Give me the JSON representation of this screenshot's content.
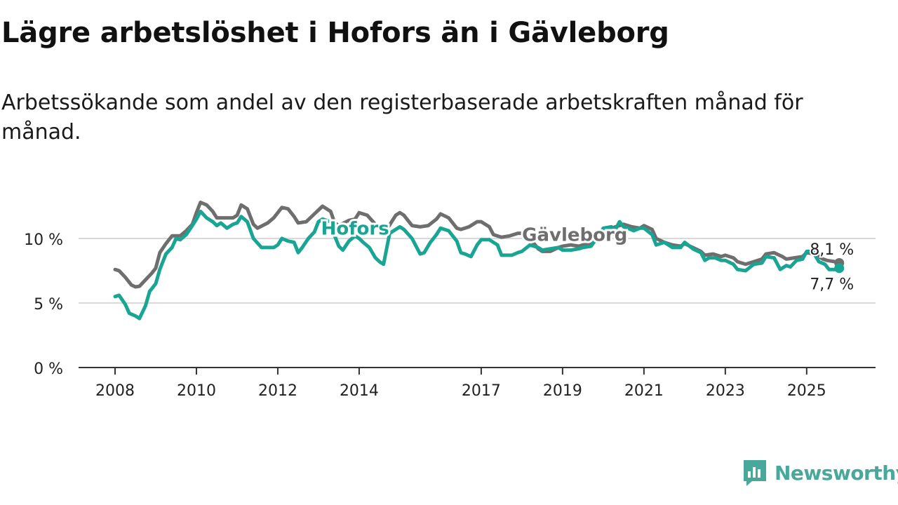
{
  "title": "Lägre arbetslöshet i Hofors än i Gävleborg",
  "subtitle": "Arbetssökande som andel av den registerbaserade arbetskraften månad för månad.",
  "brand": {
    "name": "Newsworthy",
    "icon": "newsworthy-logo-icon",
    "color": "#48a89c"
  },
  "chart_data": {
    "type": "line",
    "title": "Lägre arbetslöshet i Hofors än i Gävleborg",
    "ylabel": "",
    "xlabel": "",
    "ylim": [
      0,
      13
    ],
    "yticks": [
      0,
      5,
      10
    ],
    "ytick_labels": [
      "0 %",
      "5 %",
      "10 %"
    ],
    "xlim": [
      2008.0,
      2025.917
    ],
    "xticks": [
      2008,
      2010,
      2012,
      2014,
      2017,
      2019,
      2021,
      2023,
      2025
    ],
    "xtick_labels": [
      "2008",
      "2010",
      "2012",
      "2014",
      "2017",
      "2019",
      "2021",
      "2023",
      "2025"
    ],
    "series": [
      {
        "name": "Gävleborg",
        "color": "#6e6e6e",
        "end_label": "8,1 %",
        "points": [
          [
            2008.0,
            7.6
          ],
          [
            2008.1,
            7.5
          ],
          [
            2008.25,
            7.0
          ],
          [
            2008.4,
            6.4
          ],
          [
            2008.5,
            6.25
          ],
          [
            2008.6,
            6.3
          ],
          [
            2008.75,
            6.8
          ],
          [
            2008.9,
            7.3
          ],
          [
            2009.0,
            7.7
          ],
          [
            2009.1,
            8.9
          ],
          [
            2009.25,
            9.6
          ],
          [
            2009.4,
            10.2
          ],
          [
            2009.6,
            10.2
          ],
          [
            2009.75,
            10.6
          ],
          [
            2009.9,
            11.1
          ],
          [
            2010.0,
            12.0
          ],
          [
            2010.1,
            12.8
          ],
          [
            2010.25,
            12.6
          ],
          [
            2010.4,
            12.1
          ],
          [
            2010.5,
            11.6
          ],
          [
            2010.75,
            11.6
          ],
          [
            2010.9,
            11.6
          ],
          [
            2011.0,
            11.8
          ],
          [
            2011.1,
            12.6
          ],
          [
            2011.25,
            12.3
          ],
          [
            2011.4,
            11.1
          ],
          [
            2011.5,
            10.8
          ],
          [
            2011.75,
            11.2
          ],
          [
            2011.9,
            11.6
          ],
          [
            2012.0,
            12.0
          ],
          [
            2012.1,
            12.4
          ],
          [
            2012.25,
            12.3
          ],
          [
            2012.4,
            11.7
          ],
          [
            2012.5,
            11.2
          ],
          [
            2012.7,
            11.3
          ],
          [
            2012.9,
            11.9
          ],
          [
            2013.0,
            12.2
          ],
          [
            2013.1,
            12.5
          ],
          [
            2013.3,
            12.1
          ],
          [
            2013.4,
            11.2
          ],
          [
            2013.5,
            11.0
          ],
          [
            2013.75,
            11.4
          ],
          [
            2013.9,
            11.5
          ],
          [
            2014.0,
            12.0
          ],
          [
            2014.2,
            11.8
          ],
          [
            2014.4,
            11.1
          ],
          [
            2014.5,
            10.8
          ],
          [
            2014.7,
            10.8
          ],
          [
            2014.9,
            11.8
          ],
          [
            2015.0,
            12.0
          ],
          [
            2015.1,
            11.8
          ],
          [
            2015.3,
            11.0
          ],
          [
            2015.5,
            10.9
          ],
          [
            2015.7,
            11.0
          ],
          [
            2015.9,
            11.5
          ],
          [
            2016.0,
            11.9
          ],
          [
            2016.2,
            11.6
          ],
          [
            2016.4,
            10.8
          ],
          [
            2016.5,
            10.7
          ],
          [
            2016.7,
            10.9
          ],
          [
            2016.9,
            11.3
          ],
          [
            2017.0,
            11.3
          ],
          [
            2017.2,
            10.9
          ],
          [
            2017.3,
            10.3
          ],
          [
            2017.5,
            10.1
          ],
          [
            2017.7,
            10.2
          ],
          [
            2017.9,
            10.4
          ],
          [
            2018.0,
            10.4
          ],
          [
            2018.2,
            10.0
          ],
          [
            2018.4,
            9.2
          ],
          [
            2018.5,
            9.0
          ],
          [
            2018.7,
            9.0
          ],
          [
            2018.9,
            9.3
          ],
          [
            2019.0,
            9.4
          ],
          [
            2019.2,
            9.5
          ],
          [
            2019.4,
            9.4
          ],
          [
            2019.5,
            9.5
          ],
          [
            2019.7,
            9.6
          ],
          [
            2019.9,
            10.0
          ],
          [
            2020.0,
            10.4
          ],
          [
            2020.2,
            10.8
          ],
          [
            2020.4,
            11.0
          ],
          [
            2020.5,
            11.1
          ],
          [
            2020.7,
            10.9
          ],
          [
            2020.9,
            10.8
          ],
          [
            2021.0,
            11.0
          ],
          [
            2021.2,
            10.7
          ],
          [
            2021.3,
            10.0
          ],
          [
            2021.5,
            9.7
          ],
          [
            2021.7,
            9.5
          ],
          [
            2021.9,
            9.4
          ],
          [
            2022.0,
            9.6
          ],
          [
            2022.2,
            9.3
          ],
          [
            2022.4,
            9.0
          ],
          [
            2022.5,
            8.7
          ],
          [
            2022.7,
            8.8
          ],
          [
            2022.9,
            8.6
          ],
          [
            2023.0,
            8.7
          ],
          [
            2023.2,
            8.5
          ],
          [
            2023.3,
            8.2
          ],
          [
            2023.5,
            8.0
          ],
          [
            2023.7,
            8.2
          ],
          [
            2023.9,
            8.4
          ],
          [
            2024.0,
            8.8
          ],
          [
            2024.2,
            8.9
          ],
          [
            2024.4,
            8.6
          ],
          [
            2024.5,
            8.4
          ],
          [
            2024.7,
            8.5
          ],
          [
            2024.9,
            8.6
          ],
          [
            2025.0,
            8.9
          ],
          [
            2025.2,
            8.8
          ],
          [
            2025.4,
            8.4
          ],
          [
            2025.5,
            8.3
          ],
          [
            2025.7,
            8.2
          ],
          [
            2025.8,
            8.1
          ]
        ]
      },
      {
        "name": "Hofors",
        "color": "#18a594",
        "end_label": "7,7 %",
        "points": [
          [
            2008.0,
            5.5
          ],
          [
            2008.1,
            5.6
          ],
          [
            2008.25,
            4.9
          ],
          [
            2008.35,
            4.2
          ],
          [
            2008.5,
            4.0
          ],
          [
            2008.6,
            3.8
          ],
          [
            2008.75,
            4.8
          ],
          [
            2008.85,
            5.9
          ],
          [
            2009.0,
            6.5
          ],
          [
            2009.1,
            7.6
          ],
          [
            2009.25,
            8.8
          ],
          [
            2009.4,
            9.3
          ],
          [
            2009.5,
            10.0
          ],
          [
            2009.6,
            9.9
          ],
          [
            2009.75,
            10.3
          ],
          [
            2009.9,
            11.0
          ],
          [
            2010.0,
            11.5
          ],
          [
            2010.1,
            12.1
          ],
          [
            2010.25,
            11.6
          ],
          [
            2010.4,
            11.3
          ],
          [
            2010.5,
            11.0
          ],
          [
            2010.6,
            11.2
          ],
          [
            2010.75,
            10.8
          ],
          [
            2010.9,
            11.1
          ],
          [
            2011.0,
            11.2
          ],
          [
            2011.1,
            11.7
          ],
          [
            2011.25,
            11.3
          ],
          [
            2011.4,
            10.0
          ],
          [
            2011.6,
            9.3
          ],
          [
            2011.75,
            9.3
          ],
          [
            2011.9,
            9.3
          ],
          [
            2012.0,
            9.5
          ],
          [
            2012.1,
            10.0
          ],
          [
            2012.25,
            9.8
          ],
          [
            2012.4,
            9.7
          ],
          [
            2012.5,
            8.9
          ],
          [
            2012.6,
            9.3
          ],
          [
            2012.75,
            10.0
          ],
          [
            2012.9,
            10.5
          ],
          [
            2013.0,
            11.3
          ],
          [
            2013.1,
            11.5
          ],
          [
            2013.3,
            11.3
          ],
          [
            2013.4,
            10.2
          ],
          [
            2013.5,
            9.4
          ],
          [
            2013.6,
            9.1
          ],
          [
            2013.75,
            9.8
          ],
          [
            2013.9,
            10.2
          ],
          [
            2014.0,
            10.0
          ],
          [
            2014.1,
            9.7
          ],
          [
            2014.25,
            9.3
          ],
          [
            2014.4,
            8.5
          ],
          [
            2014.5,
            8.2
          ],
          [
            2014.6,
            8.0
          ],
          [
            2014.75,
            10.4
          ],
          [
            2014.9,
            10.7
          ],
          [
            2015.0,
            10.9
          ],
          [
            2015.1,
            10.7
          ],
          [
            2015.3,
            10.0
          ],
          [
            2015.5,
            8.8
          ],
          [
            2015.6,
            8.9
          ],
          [
            2015.75,
            9.7
          ],
          [
            2015.9,
            10.3
          ],
          [
            2016.0,
            10.8
          ],
          [
            2016.2,
            10.6
          ],
          [
            2016.4,
            9.8
          ],
          [
            2016.5,
            8.9
          ],
          [
            2016.6,
            8.8
          ],
          [
            2016.75,
            8.6
          ],
          [
            2016.9,
            9.5
          ],
          [
            2017.0,
            9.9
          ],
          [
            2017.2,
            9.9
          ],
          [
            2017.4,
            9.5
          ],
          [
            2017.5,
            8.7
          ],
          [
            2017.6,
            8.7
          ],
          [
            2017.75,
            8.7
          ],
          [
            2017.9,
            8.9
          ],
          [
            2018.0,
            9.0
          ],
          [
            2018.2,
            9.5
          ],
          [
            2018.4,
            9.3
          ],
          [
            2018.5,
            9.1
          ],
          [
            2018.7,
            9.2
          ],
          [
            2018.9,
            9.3
          ],
          [
            2019.0,
            9.1
          ],
          [
            2019.2,
            9.1
          ],
          [
            2019.4,
            9.2
          ],
          [
            2019.5,
            9.3
          ],
          [
            2019.7,
            9.4
          ],
          [
            2019.9,
            10.3
          ],
          [
            2020.0,
            10.8
          ],
          [
            2020.2,
            10.9
          ],
          [
            2020.3,
            10.7
          ],
          [
            2020.4,
            11.3
          ],
          [
            2020.5,
            10.9
          ],
          [
            2020.6,
            10.8
          ],
          [
            2020.75,
            10.6
          ],
          [
            2020.9,
            10.8
          ],
          [
            2021.0,
            10.8
          ],
          [
            2021.2,
            10.3
          ],
          [
            2021.3,
            9.5
          ],
          [
            2021.5,
            9.7
          ],
          [
            2021.7,
            9.3
          ],
          [
            2021.9,
            9.3
          ],
          [
            2022.0,
            9.7
          ],
          [
            2022.2,
            9.2
          ],
          [
            2022.4,
            8.9
          ],
          [
            2022.5,
            8.3
          ],
          [
            2022.6,
            8.5
          ],
          [
            2022.75,
            8.5
          ],
          [
            2022.9,
            8.3
          ],
          [
            2023.0,
            8.3
          ],
          [
            2023.2,
            8.0
          ],
          [
            2023.3,
            7.6
          ],
          [
            2023.5,
            7.5
          ],
          [
            2023.7,
            8.0
          ],
          [
            2023.9,
            8.1
          ],
          [
            2024.0,
            8.6
          ],
          [
            2024.2,
            8.5
          ],
          [
            2024.35,
            7.6
          ],
          [
            2024.5,
            7.9
          ],
          [
            2024.6,
            7.8
          ],
          [
            2024.75,
            8.3
          ],
          [
            2024.9,
            8.4
          ],
          [
            2025.0,
            9.0
          ],
          [
            2025.15,
            9.0
          ],
          [
            2025.3,
            8.2
          ],
          [
            2025.45,
            8.0
          ],
          [
            2025.55,
            7.6
          ],
          [
            2025.7,
            7.6
          ],
          [
            2025.8,
            7.7
          ]
        ]
      }
    ],
    "annotations": [
      {
        "text": "Hofors",
        "series": "Hofors",
        "at": [
          2013.9,
          10.3
        ]
      },
      {
        "text": "Gävleborg",
        "series": "Gävleborg",
        "at": [
          2019.3,
          9.8
        ]
      }
    ]
  }
}
